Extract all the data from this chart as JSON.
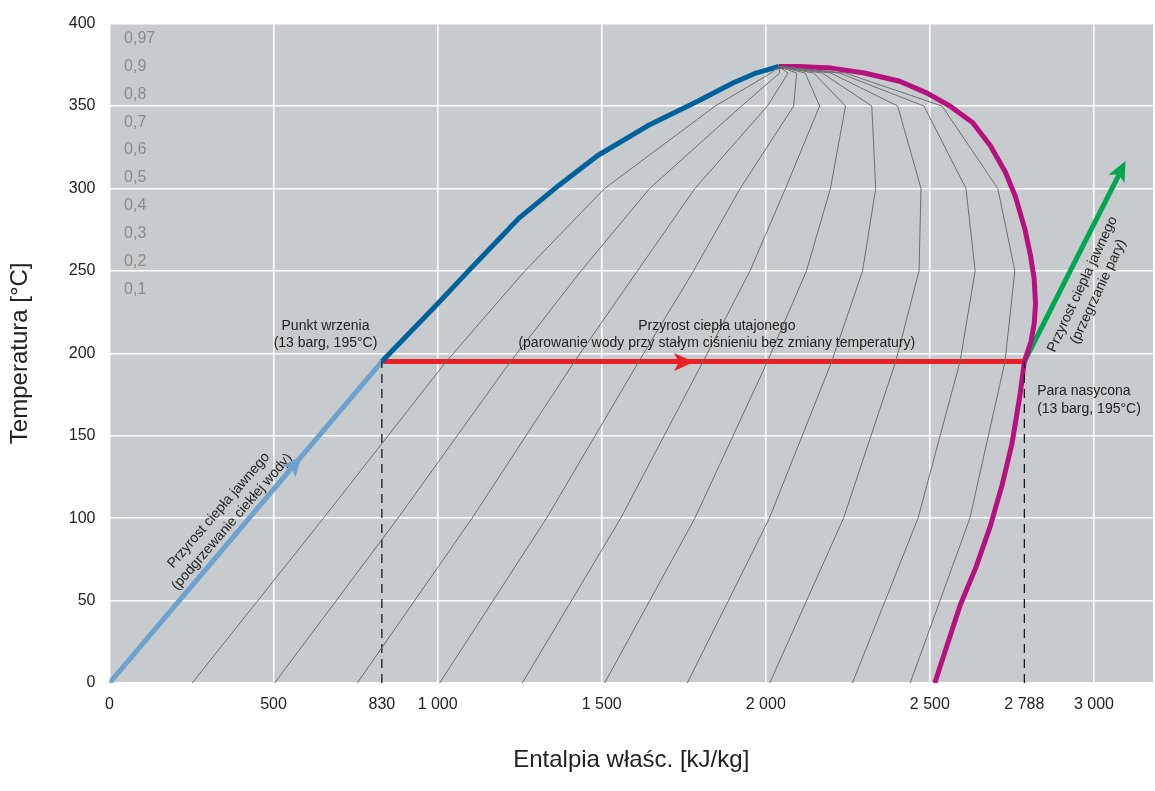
{
  "chart_data": {
    "type": "line",
    "xlabel": "Entalpia właśc. [kJ/kg]",
    "ylabel": "Temperatura [°C]",
    "xlim": [
      0,
      3180
    ],
    "ylim": [
      0,
      400
    ],
    "xticks": [
      0,
      500,
      {
        "value": 830,
        "label": "830"
      },
      {
        "value": 1000,
        "label": "1 000"
      },
      {
        "value": 1500,
        "label": "1 500"
      },
      {
        "value": 2000,
        "label": "2 000"
      },
      {
        "value": 2500,
        "label": "2 500"
      },
      {
        "value": 2788,
        "label": "2 788"
      },
      {
        "value": 3000,
        "label": "3 000"
      }
    ],
    "yticks": [
      0,
      50,
      100,
      150,
      200,
      250,
      300,
      350,
      400
    ],
    "grid": true,
    "legend": false,
    "series": [
      {
        "type": "line",
        "color": "#6e6e6e",
        "x": [
          252,
          652,
          1026,
          1266,
          1509,
          1846,
          2016,
          2040
        ],
        "values": [
          0,
          100,
          195,
          250,
          300,
          350,
          370,
          374
        ]
      },
      {
        "type": "line",
        "color": "#6e6e6e",
        "x": [
          503,
          879,
          1222,
          1437,
          1646,
          1926,
          2042,
          2040
        ],
        "values": [
          0,
          100,
          195,
          250,
          300,
          350,
          370,
          374
        ]
      },
      {
        "type": "line",
        "color": "#6e6e6e",
        "x": [
          755,
          1105,
          1417,
          1609,
          1784,
          2005,
          2068,
          2040
        ],
        "values": [
          0,
          100,
          195,
          250,
          300,
          350,
          370,
          374
        ]
      },
      {
        "type": "line",
        "color": "#6e6e6e",
        "x": [
          1006,
          1332,
          1613,
          1780,
          1922,
          2085,
          2094,
          2040
        ],
        "values": [
          0,
          100,
          195,
          250,
          300,
          350,
          370,
          374
        ]
      },
      {
        "type": "line",
        "color": "#6e6e6e",
        "x": [
          1258,
          1558,
          1809,
          1952,
          2060,
          2164,
          2120,
          2040
        ],
        "values": [
          0,
          100,
          195,
          250,
          300,
          350,
          370,
          374
        ]
      },
      {
        "type": "line",
        "color": "#6e6e6e",
        "x": [
          1509,
          1784,
          2005,
          2124,
          2197,
          2243,
          2146,
          2040
        ],
        "values": [
          0,
          100,
          195,
          250,
          300,
          350,
          370,
          374
        ]
      },
      {
        "type": "line",
        "color": "#6e6e6e",
        "x": [
          1761,
          2011,
          2201,
          2295,
          2335,
          2323,
          2172,
          2040
        ],
        "values": [
          0,
          100,
          195,
          250,
          300,
          350,
          370,
          374
        ]
      },
      {
        "type": "line",
        "color": "#6e6e6e",
        "x": [
          2012,
          2237,
          2396,
          2467,
          2473,
          2402,
          2198,
          2040
        ],
        "values": [
          0,
          100,
          195,
          250,
          300,
          350,
          370,
          374
        ]
      },
      {
        "type": "line",
        "color": "#6e6e6e",
        "x": [
          2264,
          2464,
          2592,
          2638,
          2610,
          2482,
          2224,
          2040
        ],
        "values": [
          0,
          100,
          195,
          250,
          300,
          350,
          370,
          374
        ]
      },
      {
        "type": "line",
        "color": "#6e6e6e",
        "x": [
          2440,
          2622,
          2729,
          2759,
          2707,
          2537,
          2242,
          2040
        ],
        "values": [
          0,
          100,
          195,
          250,
          300,
          350,
          370,
          374
        ]
      },
      {
        "type": "line",
        "color": "#1a1a1a",
        "line_style": "dashed",
        "x": [
          830,
          830
        ],
        "values": [
          0,
          195
        ]
      },
      {
        "type": "line",
        "color": "#1a1a1a",
        "line_style": "dashed",
        "x": [
          2788,
          2788
        ],
        "values": [
          0,
          195
        ]
      },
      {
        "type": "line",
        "color": "#6fa1cf",
        "x": [
          0,
          830
        ],
        "values": [
          0,
          195
        ]
      },
      {
        "type": "line",
        "color": "#00629b",
        "x": [
          830,
          1000,
          1094,
          1248,
          1370,
          1488,
          1640,
          1794,
          1900,
          1970,
          2040
        ],
        "values": [
          195,
          230,
          250,
          282,
          302,
          320,
          338,
          353,
          364,
          370,
          374
        ]
      },
      {
        "type": "line",
        "color": "#b5127f",
        "x": [
          2040,
          2100,
          2200,
          2300,
          2408,
          2490,
          2561,
          2630,
          2684,
          2730,
          2761,
          2790,
          2807,
          2818,
          2822,
          2818,
          2808,
          2788,
          2775,
          2750,
          2720,
          2684,
          2640,
          2592,
          2515
        ],
        "values": [
          374,
          374,
          373,
          370,
          365,
          358,
          350,
          340,
          326,
          310,
          295,
          275,
          259,
          245,
          230,
          218,
          207,
          195,
          175,
          145,
          120,
          95,
          70,
          47,
          0
        ]
      },
      {
        "type": "line",
        "color": "#ea2027",
        "x": [
          830,
          2788
        ],
        "values": [
          195,
          195
        ]
      },
      {
        "type": "line",
        "color": "#00a651",
        "x": [
          2788,
          3083
        ],
        "values": [
          195,
          311
        ]
      }
    ],
    "annotations": [
      "Punkt wrzenia\n(13 barg, 195°C)",
      "Przyrost ciepła utajonego\n(parowanie wody przy stałym ciśnieniu bez zmiany temperatury)",
      "Para nasycona\n(13 barg, 195°C)",
      "Przyrost ciepła jawnego\n(podgrzewanie ciekłej wody)",
      "Przyrost ciepła jawnego\n(przegrzanie pary)",
      "0,97",
      "0,9",
      "0,8",
      "0,7",
      "0,6",
      "0,5",
      "0,4",
      "0,3",
      "0,2",
      "0,1"
    ]
  }
}
